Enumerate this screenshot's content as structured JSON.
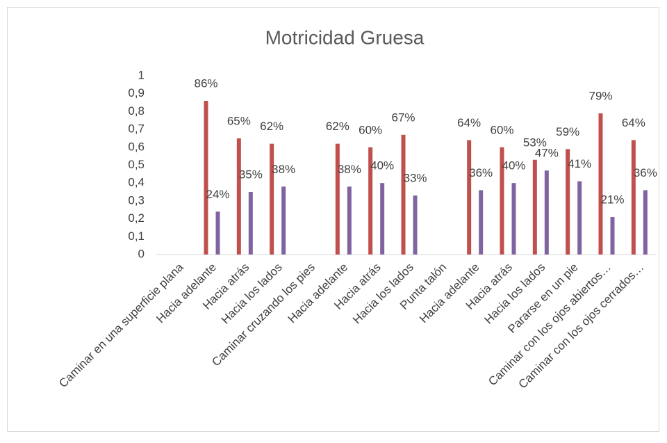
{
  "chart_data": {
    "type": "bar",
    "title": "Motricidad Gruesa",
    "categories": [
      "Caminar en una superficie plana",
      "Hacia adelante",
      "Hacia atrás",
      "Hacia los lados",
      "Caminar cruzando los pies",
      "Hacia adelante",
      "Hacia atrás",
      "Hacia los lados",
      "Punta talón",
      "Hacia adelante",
      "Hacia atrás",
      "Hacia los lados",
      "Pararse en un pie",
      "Caminar con los ojos abiertos…",
      "Caminar con los ojos cerrados…"
    ],
    "series": [
      {
        "color": "#c0504d",
        "values": [
          null,
          0.86,
          0.65,
          0.62,
          null,
          0.62,
          0.6,
          0.67,
          null,
          0.64,
          0.6,
          0.53,
          0.59,
          0.79,
          0.64
        ],
        "value_labels": [
          null,
          "86%",
          "65%",
          "62%",
          null,
          "62%",
          "60%",
          "67%",
          null,
          "64%",
          "60%",
          "53%",
          "59%",
          "79%",
          "64%"
        ]
      },
      {
        "color": "#8064a2",
        "values": [
          null,
          0.24,
          0.35,
          0.38,
          null,
          0.38,
          0.4,
          0.33,
          null,
          0.36,
          0.4,
          0.47,
          0.41,
          0.21,
          0.36
        ],
        "value_labels": [
          null,
          "24%",
          "35%",
          "38%",
          null,
          "38%",
          "40%",
          "33%",
          null,
          "36%",
          "40%",
          "47%",
          "41%",
          "21%",
          "36%"
        ]
      }
    ],
    "ylim": [
      0,
      1
    ],
    "yticks": [
      0,
      {
        "value": 0.1,
        "label": "0,1"
      },
      {
        "value": 0.2,
        "label": "0,2"
      },
      {
        "value": 0.3,
        "label": "0,3"
      },
      {
        "value": 0.4,
        "label": "0,4"
      },
      {
        "value": 0.5,
        "label": "0,5"
      },
      {
        "value": 0.6,
        "label": "0,6"
      },
      {
        "value": 0.7,
        "label": "0,7"
      },
      {
        "value": 0.8,
        "label": "0,8"
      },
      {
        "value": 0.9,
        "label": "0,9"
      },
      1
    ]
  }
}
